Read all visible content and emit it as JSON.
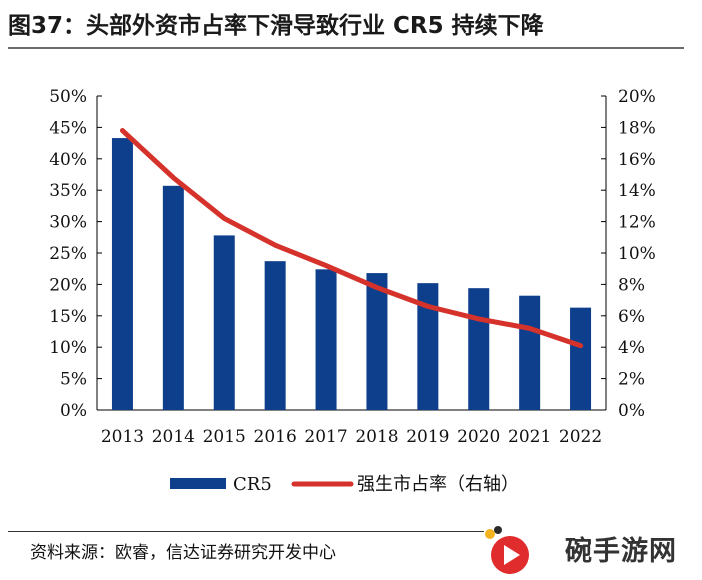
{
  "header": {
    "title": "图37：头部外资市占率下滑导致行业 CR5 持续下降"
  },
  "footer": {
    "source": "资料来源：欧睿，信达证券研究开发中心",
    "watermark": "碗手游网"
  },
  "colors": {
    "bar": "#0d3f8c",
    "line": "#d6322c"
  },
  "chart_data": {
    "type": "bar",
    "categories": [
      "2013",
      "2014",
      "2015",
      "2016",
      "2017",
      "2018",
      "2019",
      "2020",
      "2021",
      "2022"
    ],
    "series": [
      {
        "name": "CR5",
        "type": "bar",
        "axis": "left",
        "values": [
          43.3,
          35.7,
          27.8,
          23.7,
          22.4,
          21.8,
          20.2,
          19.4,
          18.2,
          16.3
        ]
      },
      {
        "name": "强生市占率（右轴）",
        "type": "line",
        "axis": "right",
        "values": [
          17.8,
          14.8,
          12.2,
          10.5,
          9.2,
          7.8,
          6.6,
          5.8,
          5.2,
          4.1
        ]
      }
    ],
    "y_left": {
      "min": 0,
      "max": 50,
      "step": 5,
      "suffix": "%"
    },
    "y_right": {
      "min": 0,
      "max": 20,
      "step": 2,
      "suffix": "%"
    },
    "legend": "bottom-center",
    "grid": false
  }
}
